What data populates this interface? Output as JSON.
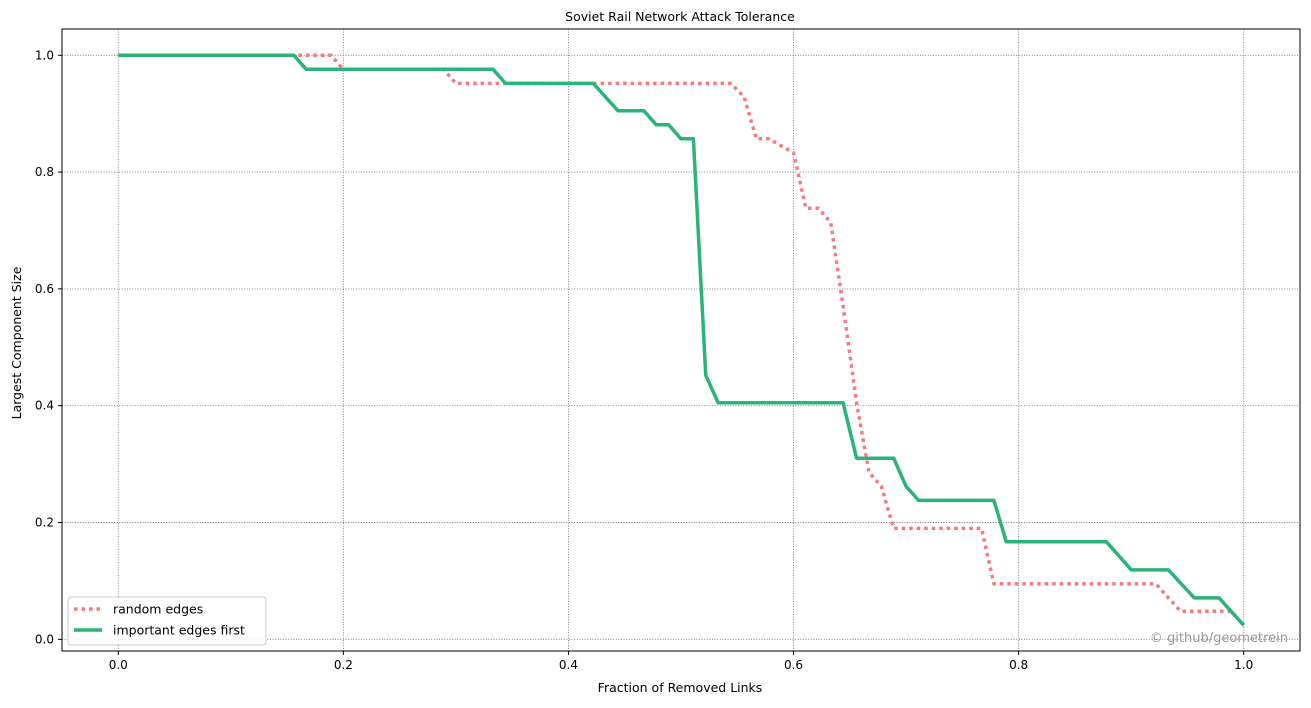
{
  "chart_data": {
    "type": "line",
    "title": "Soviet Rail Network Attack Tolerance",
    "xlabel": "Fraction of Removed Links",
    "ylabel": "Largest Component Size",
    "xlim": [
      -0.05,
      1.05
    ],
    "ylim": [
      -0.02,
      1.045
    ],
    "xticks": [
      0.0,
      0.2,
      0.4,
      0.6,
      0.8,
      1.0
    ],
    "xtick_labels": [
      "0.0",
      "0.2",
      "0.4",
      "0.6",
      "0.8",
      "1.0"
    ],
    "yticks": [
      0.0,
      0.2,
      0.4,
      0.6,
      0.8,
      1.0
    ],
    "ytick_labels": [
      "0.0",
      "0.2",
      "0.4",
      "0.6",
      "0.8",
      "1.0"
    ],
    "grid": true,
    "legend_position": "lower-left",
    "watermark": "© github/geometrein",
    "series": [
      {
        "name": "random edges",
        "color": "#f87a7a",
        "style": "dotted",
        "x": [
          0.0,
          0.178,
          0.189,
          0.2,
          0.289,
          0.3,
          0.544,
          0.556,
          0.567,
          0.578,
          0.6,
          0.611,
          0.622,
          0.633,
          0.644,
          0.656,
          0.667,
          0.678,
          0.689,
          0.7,
          0.767,
          0.778,
          0.911,
          0.922,
          0.933,
          0.944,
          0.989,
          1.0
        ],
        "y": [
          1.0,
          1.0,
          1.0,
          0.976,
          0.976,
          0.952,
          0.952,
          0.929,
          0.857,
          0.857,
          0.833,
          0.738,
          0.738,
          0.714,
          0.571,
          0.405,
          0.286,
          0.262,
          0.19,
          0.19,
          0.19,
          0.095,
          0.095,
          0.095,
          0.071,
          0.048,
          0.048,
          0.024
        ]
      },
      {
        "name": "important edges first",
        "color": "#2bb37a",
        "style": "solid",
        "x": [
          0.0,
          0.156,
          0.167,
          0.333,
          0.344,
          0.422,
          0.444,
          0.467,
          0.478,
          0.489,
          0.5,
          0.511,
          0.522,
          0.533,
          0.644,
          0.656,
          0.689,
          0.7,
          0.711,
          0.778,
          0.789,
          0.878,
          0.9,
          0.933,
          0.956,
          0.978,
          1.0
        ],
        "y": [
          1.0,
          1.0,
          0.976,
          0.976,
          0.952,
          0.952,
          0.905,
          0.905,
          0.881,
          0.881,
          0.857,
          0.857,
          0.452,
          0.405,
          0.405,
          0.31,
          0.31,
          0.262,
          0.238,
          0.238,
          0.167,
          0.167,
          0.119,
          0.119,
          0.071,
          0.071,
          0.024
        ]
      }
    ]
  }
}
